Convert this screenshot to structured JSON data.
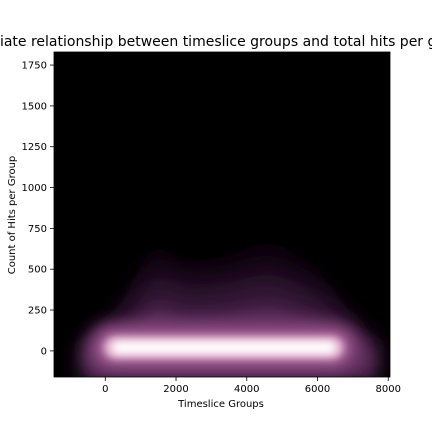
{
  "chart_data": {
    "type": "heatmap",
    "kind": "bivariate-kde",
    "title": "Bivariate relationship between timeslice groups and total hits per group",
    "xlabel": "Timeslice Groups",
    "ylabel": "Count of Hits per Group",
    "xlim": [
      -1450,
      8050
    ],
    "ylim": [
      -160,
      1830
    ],
    "xticks": [
      0,
      2000,
      4000,
      6000,
      8000
    ],
    "yticks": [
      0,
      250,
      500,
      750,
      1000,
      1250,
      1500,
      1750
    ],
    "grid": false,
    "legend": "none",
    "background_color": "#000000",
    "colormap": [
      "#000000",
      "#2d1230",
      "#6b3468",
      "#b56aa0",
      "#e7b9d4",
      "#ffffff"
    ],
    "density_profile": {
      "x": [
        -600,
        0,
        500,
        1000,
        1500,
        2000,
        2500,
        3000,
        3500,
        4000,
        4500,
        5000,
        5500,
        6000,
        6500,
        7000,
        7600
      ],
      "upper_envelope": [
        60,
        150,
        300,
        520,
        700,
        560,
        540,
        560,
        580,
        620,
        680,
        640,
        560,
        500,
        360,
        200,
        60
      ],
      "core_center_y": 20,
      "core_x_range": [
        -200,
        6900
      ]
    }
  }
}
